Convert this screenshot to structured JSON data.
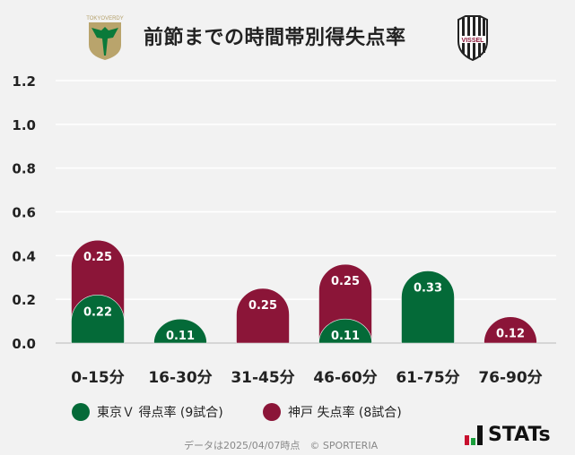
{
  "header": {
    "title": "前節までの時間帯別得失点率",
    "home_logo_text": "TOKYO VERDY",
    "away_logo_text": "VISSEL"
  },
  "colors": {
    "home": "#046a38",
    "away": "#8b1538",
    "grid": "#ffffff",
    "axis": "#d6d6d6"
  },
  "chart_data": {
    "type": "bar",
    "stacked": true,
    "title": "前節までの時間帯別得失点率",
    "categories": [
      "0-15分",
      "16-30分",
      "31-45分",
      "46-60分",
      "61-75分",
      "76-90分"
    ],
    "series": [
      {
        "name": "東京Ｖ 得点率 (9試合)",
        "values": [
          0.22,
          0.11,
          0,
          0.11,
          0.33,
          0
        ]
      },
      {
        "name": "神戸 失点率 (8試合)",
        "values": [
          0.25,
          0,
          0.25,
          0.25,
          0,
          0.12
        ]
      }
    ],
    "yticks": [
      "0.0",
      "0.2",
      "0.4",
      "0.6",
      "0.8",
      "1.0",
      "1.2"
    ],
    "ylim": [
      0,
      1.2
    ],
    "grid": true,
    "legend": "bottom"
  },
  "legend": {
    "home": "東京Ｖ 得点率 (9試合)",
    "away": "神戸 失点率 (8試合)"
  },
  "footer": {
    "note": "データは2025/04/07時点　© SPORTERIA",
    "brand": "STATs"
  }
}
